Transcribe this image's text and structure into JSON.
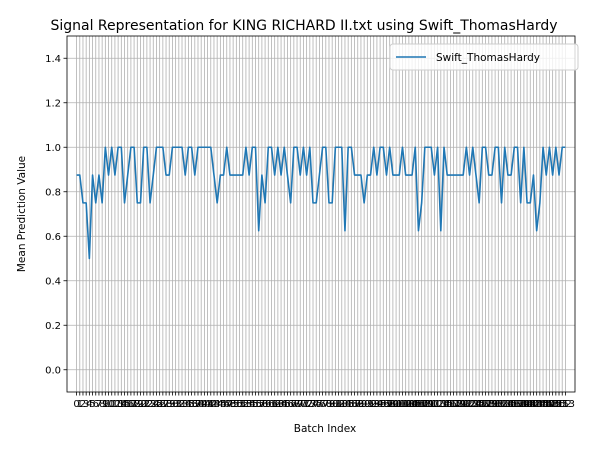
{
  "chart_data": {
    "type": "line",
    "title": "Signal Representation for KING RICHARD II.txt using Swift_ThomasHardy",
    "xlabel": "Batch Index",
    "ylabel": "Mean Prediction Value",
    "ylim": [
      -0.1,
      1.5
    ],
    "xlim": [
      -3,
      156
    ],
    "yticks": [
      0.0,
      0.2,
      0.4,
      0.6,
      0.8,
      1.0,
      1.2,
      1.4
    ],
    "yticklabels": [
      "0.0",
      "0.2",
      "0.4",
      "0.6",
      "0.8",
      "1.0",
      "1.2",
      "1.4"
    ],
    "xticks": [
      0,
      1,
      2,
      3,
      4,
      5,
      6,
      7,
      8,
      9,
      10,
      11,
      12,
      13,
      14,
      15,
      16,
      17,
      18,
      19,
      20,
      21,
      22,
      23,
      24,
      25,
      26,
      27,
      28,
      29,
      30,
      31,
      32,
      33,
      34,
      35,
      36,
      37,
      38,
      39,
      40,
      41,
      42,
      43,
      44,
      45,
      46,
      47,
      48,
      49,
      50,
      51,
      52,
      53,
      54,
      55,
      56,
      57,
      58,
      59,
      60,
      61,
      62,
      63,
      64,
      65,
      66,
      67,
      68,
      69,
      70,
      71,
      72,
      73,
      74,
      75,
      76,
      77,
      78,
      79,
      80,
      81,
      82,
      83,
      84,
      85,
      86,
      87,
      88,
      89,
      90,
      91,
      92,
      93,
      94,
      95,
      96,
      97,
      98,
      99,
      100,
      101,
      102,
      103,
      104,
      105,
      106,
      107,
      108,
      109,
      110,
      111,
      112,
      113,
      114,
      115,
      116,
      117,
      118,
      119,
      120,
      121,
      122,
      123,
      124,
      125,
      126,
      127,
      128,
      129,
      130,
      131,
      132,
      133,
      134,
      135,
      136,
      137,
      138,
      139,
      140,
      141,
      142,
      143,
      144,
      145,
      146,
      147,
      148,
      149,
      150,
      151,
      152,
      153
    ],
    "grid": true,
    "legend_position": "upper right",
    "series": [
      {
        "name": "Swift_ThomasHardy",
        "color": "#1f77b4",
        "x": [
          0,
          1,
          2,
          3,
          4,
          5,
          6,
          7,
          8,
          9,
          10,
          11,
          12,
          13,
          14,
          15,
          16,
          17,
          18,
          19,
          20,
          21,
          22,
          23,
          24,
          25,
          26,
          27,
          28,
          29,
          30,
          31,
          32,
          33,
          34,
          35,
          36,
          37,
          38,
          39,
          40,
          41,
          42,
          43,
          44,
          45,
          46,
          47,
          48,
          49,
          50,
          51,
          52,
          53,
          54,
          55,
          56,
          57,
          58,
          59,
          60,
          61,
          62,
          63,
          64,
          65,
          66,
          67,
          68,
          69,
          70,
          71,
          72,
          73,
          74,
          75,
          76,
          77,
          78,
          79,
          80,
          81,
          82,
          83,
          84,
          85,
          86,
          87,
          88,
          89,
          90,
          91,
          92,
          93,
          94,
          95,
          96,
          97,
          98,
          99,
          100,
          101,
          102,
          103,
          104,
          105,
          106,
          107,
          108,
          109,
          110,
          111,
          112,
          113,
          114,
          115,
          116,
          117,
          118,
          119,
          120,
          121,
          122,
          123,
          124,
          125,
          126,
          127,
          128,
          129,
          130,
          131,
          132,
          133,
          134,
          135,
          136,
          137,
          138,
          139,
          140,
          141,
          142,
          143,
          144,
          145,
          146,
          147,
          148,
          149,
          150,
          151,
          152,
          153
        ],
        "values": [
          0.875,
          0.875,
          0.75,
          0.75,
          0.5,
          0.875,
          0.75,
          0.875,
          0.75,
          1.0,
          0.875,
          1.0,
          0.875,
          1.0,
          1.0,
          0.75,
          0.875,
          1.0,
          1.0,
          0.75,
          0.75,
          1.0,
          1.0,
          0.75,
          0.875,
          1.0,
          1.0,
          1.0,
          0.875,
          0.875,
          1.0,
          1.0,
          1.0,
          1.0,
          0.875,
          1.0,
          1.0,
          0.875,
          1.0,
          1.0,
          1.0,
          1.0,
          1.0,
          0.875,
          0.75,
          0.875,
          0.875,
          1.0,
          0.875,
          0.875,
          0.875,
          0.875,
          0.875,
          1.0,
          0.875,
          1.0,
          1.0,
          0.625,
          0.875,
          0.75,
          1.0,
          1.0,
          0.875,
          1.0,
          0.875,
          1.0,
          0.875,
          0.75,
          1.0,
          1.0,
          0.875,
          1.0,
          0.875,
          1.0,
          0.75,
          0.75,
          0.875,
          1.0,
          1.0,
          0.75,
          0.75,
          1.0,
          1.0,
          1.0,
          0.625,
          1.0,
          1.0,
          0.875,
          0.875,
          0.875,
          0.75,
          0.875,
          0.875,
          1.0,
          0.875,
          1.0,
          1.0,
          0.875,
          1.0,
          0.875,
          0.875,
          0.875,
          1.0,
          0.875,
          0.875,
          0.875,
          1.0,
          0.625,
          0.75,
          1.0,
          1.0,
          1.0,
          0.875,
          1.0,
          0.625,
          1.0,
          0.875,
          0.875,
          0.875,
          0.875,
          0.875,
          0.875,
          1.0,
          0.875,
          1.0,
          0.875,
          0.75,
          1.0,
          1.0,
          0.875,
          0.875,
          1.0,
          1.0,
          0.75,
          1.0,
          0.875,
          0.875,
          1.0,
          1.0,
          0.75,
          1.0,
          0.75,
          0.75,
          0.875,
          0.625,
          0.75,
          1.0,
          0.875,
          1.0,
          0.875,
          1.0,
          0.875,
          1.0,
          1.0
        ]
      }
    ]
  }
}
